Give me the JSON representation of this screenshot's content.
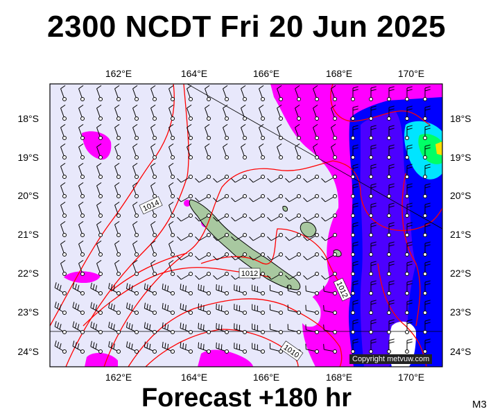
{
  "title": "2300 NCDT Fri 20 Jun 2025",
  "forecast_label": "Forecast +180 hr",
  "model_label": "M3",
  "copyright": "Copyright metvuw.com",
  "map": {
    "lon_labels": [
      "162°E",
      "164°E",
      "166°E",
      "168°E",
      "170°E"
    ],
    "lon_values": [
      162,
      164,
      166,
      168,
      170
    ],
    "lat_labels": [
      "18°S",
      "19°S",
      "20°S",
      "21°S",
      "22°S",
      "23°S",
      "24°S"
    ],
    "lat_values": [
      18,
      19,
      20,
      21,
      22,
      23,
      24
    ],
    "isobar_labels": [
      "1014",
      "1012",
      "1012",
      "1010"
    ],
    "colors": {
      "background": "#e8e8fb",
      "isobar": "#ff0000",
      "rain_light": "#ff00ff",
      "rain_heavy": "#0000ff",
      "rain_cyan": "#00e5ff",
      "rain_green": "#00ff66",
      "land": "#a8c8a0"
    }
  }
}
